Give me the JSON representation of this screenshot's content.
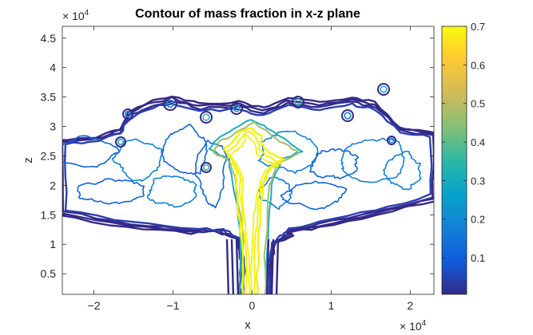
{
  "chart_data": {
    "type": "contour",
    "title": "Contour of mass fraction in x-z plane",
    "xlabel": "x",
    "ylabel": "z",
    "x_exponent_base": "× 10",
    "x_exponent_power": "4",
    "y_exponent_base": "× 10",
    "y_exponent_power": "4",
    "xlim": [
      -2.4,
      2.3
    ],
    "ylim": [
      0.15,
      4.7
    ],
    "xticks": [
      -2,
      -1,
      0,
      1,
      2
    ],
    "xtick_labels": [
      "−2",
      "−1",
      "0",
      "1",
      "2"
    ],
    "yticks": [
      0.5,
      1,
      1.5,
      2,
      2.5,
      3,
      3.5,
      4,
      4.5
    ],
    "ytick_labels": [
      "0.5",
      "1",
      "1.5",
      "2",
      "2.5",
      "3",
      "3.5",
      "4",
      "4.5"
    ],
    "colorbar": {
      "range": [
        0.005,
        0.7
      ],
      "ticks": [
        0.1,
        0.2,
        0.3,
        0.4,
        0.5,
        0.6,
        0.7
      ],
      "tick_labels": [
        "0.1",
        "0.2",
        "0.3",
        "0.4",
        "0.5",
        "0.6",
        "0.7"
      ],
      "colormap": "parula",
      "colors": [
        "#352a87",
        "#0f5cdd",
        "#1481d6",
        "#06a4ca",
        "#2eb7a4",
        "#87bf77",
        "#d1bb59",
        "#fec832",
        "#f9fb0e"
      ]
    },
    "contour_levels": [
      0.01,
      0.02,
      0.05,
      0.1,
      0.2,
      0.3,
      0.4,
      0.6,
      0.7
    ],
    "level_colors": [
      "#352a87",
      "#352a87",
      "#2c3fb5",
      "#1264d8",
      "#1481d6",
      "#1fa9c4",
      "#38b99d",
      "#a3bd6a",
      "#f2f20c"
    ]
  }
}
